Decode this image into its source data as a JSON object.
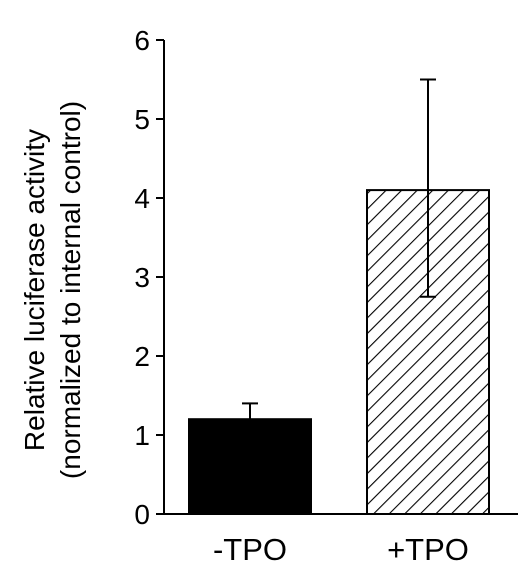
{
  "chart_data": {
    "type": "bar",
    "categories": [
      "-TPO",
      "+TPO"
    ],
    "values": [
      1.2,
      4.1
    ],
    "error_upper": [
      1.4,
      5.5
    ],
    "error_lower": [
      1.2,
      2.75
    ],
    "fills": [
      "solid-black",
      "diagonal-hatch"
    ],
    "ylabel_line1": "Relative luciferase activity",
    "ylabel_line2": "(normalized to internal control)",
    "ylim": [
      0,
      6
    ],
    "yticks": [
      0,
      1,
      2,
      3,
      4,
      5,
      6
    ],
    "grid": false,
    "legend": "none",
    "colors": {
      "solid_bar": "#000000",
      "hatch": "#000000",
      "axis": "#000000"
    }
  }
}
